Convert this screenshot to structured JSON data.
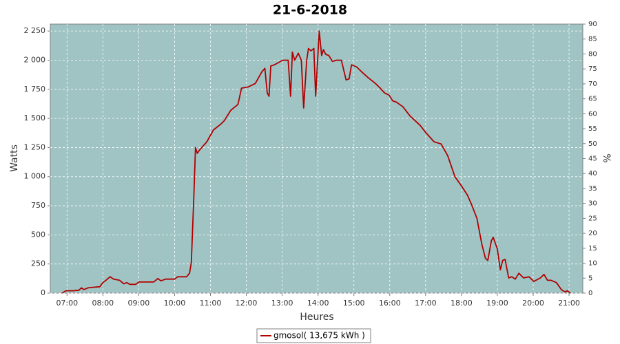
{
  "chart_data": {
    "type": "line",
    "title": "21-6-2018",
    "x_label": "Heures",
    "y_label": "Watts",
    "y2_label": "%",
    "xlim": [
      "06:32",
      "21:23"
    ],
    "xticks": [
      "07:00",
      "08:00",
      "09:00",
      "10:00",
      "11:00",
      "12:00",
      "13:00",
      "14:00",
      "15:00",
      "16:00",
      "17:00",
      "18:00",
      "19:00",
      "20:00",
      "21:00"
    ],
    "ylim": [
      0,
      2310
    ],
    "yticks": [
      0,
      250,
      500,
      750,
      {
        "value": 1000,
        "label": "1 000"
      },
      {
        "value": 1250,
        "label": "1 250"
      },
      {
        "value": 1500,
        "label": "1 500"
      },
      {
        "value": 1750,
        "label": "1 750"
      },
      {
        "value": 2000,
        "label": "2 000"
      },
      {
        "value": 2250,
        "label": "2 250"
      }
    ],
    "y2lim": [
      0,
      90
    ],
    "y2ticks": [
      0,
      5,
      10,
      15,
      20,
      25,
      30,
      35,
      40,
      45,
      50,
      55,
      60,
      65,
      70,
      75,
      80,
      85,
      90
    ],
    "grid": true,
    "plot_background": "#a0c4c4",
    "x": [
      "06:52",
      "06:58",
      "07:10",
      "07:20",
      "07:24",
      "07:28",
      "07:35",
      "07:45",
      "07:55",
      "08:00",
      "08:05",
      "08:12",
      "08:18",
      "08:28",
      "08:35",
      "08:40",
      "08:45",
      "08:55",
      "09:00",
      "09:25",
      "09:32",
      "09:37",
      "09:45",
      "10:00",
      "10:05",
      "10:20",
      "10:25",
      "10:28",
      "10:32",
      "10:35",
      "10:38",
      "10:42",
      "10:54",
      "11:05",
      "11:17",
      "11:23",
      "11:34",
      "11:46",
      "11:52",
      "12:03",
      "12:15",
      "12:26",
      "12:31",
      "12:35",
      "12:38",
      "12:41",
      "12:47",
      "13:01",
      "13:10",
      "13:14",
      "13:17",
      "13:21",
      "13:27",
      "13:32",
      "13:36",
      "13:41",
      "13:44",
      "13:48",
      "13:53",
      "13:56",
      "14:02",
      "14:06",
      "14:09",
      "14:13",
      "14:18",
      "14:24",
      "14:31",
      "14:39",
      "14:47",
      "14:52",
      "14:56",
      "15:05",
      "15:13",
      "15:24",
      "15:36",
      "15:44",
      "15:51",
      "15:59",
      "16:05",
      "16:11",
      "16:22",
      "16:34",
      "16:51",
      "17:00",
      "17:14",
      "17:26",
      "17:37",
      "17:49",
      "18:00",
      "18:10",
      "18:17",
      "18:26",
      "18:34",
      "18:40",
      "18:44",
      "18:50",
      "18:53",
      "19:00",
      "19:05",
      "19:09",
      "19:13",
      "19:19",
      "19:24",
      "19:30",
      "19:36",
      "19:44",
      "19:53",
      "20:01",
      "20:12",
      "20:18",
      "20:24",
      "20:30",
      "20:39",
      "20:47",
      "20:53",
      "20:57",
      "21:02"
    ],
    "series": [
      {
        "name": "gmosol( 13,675 kWh )",
        "color": "#b00000",
        "values": [
          0,
          20,
          20,
          25,
          45,
          30,
          45,
          50,
          55,
          90,
          110,
          140,
          120,
          110,
          80,
          90,
          75,
          75,
          95,
          95,
          125,
          105,
          120,
          120,
          140,
          140,
          170,
          260,
          800,
          1250,
          1200,
          1230,
          1300,
          1400,
          1450,
          1480,
          1570,
          1620,
          1760,
          1770,
          1800,
          1900,
          1930,
          1720,
          1690,
          1950,
          1960,
          2000,
          2000,
          1690,
          2070,
          2000,
          2060,
          2000,
          1590,
          2000,
          2100,
          2080,
          2100,
          1690,
          2250,
          2040,
          2090,
          2050,
          2040,
          1990,
          2000,
          2000,
          1830,
          1840,
          1960,
          1940,
          1900,
          1850,
          1800,
          1760,
          1720,
          1700,
          1650,
          1640,
          1600,
          1520,
          1440,
          1380,
          1300,
          1280,
          1180,
          1000,
          920,
          840,
          760,
          640,
          420,
          300,
          280,
          450,
          480,
          380,
          200,
          280,
          290,
          130,
          140,
          120,
          170,
          130,
          140,
          100,
          130,
          160,
          110,
          110,
          90,
          30,
          10,
          20,
          0
        ]
      }
    ]
  }
}
